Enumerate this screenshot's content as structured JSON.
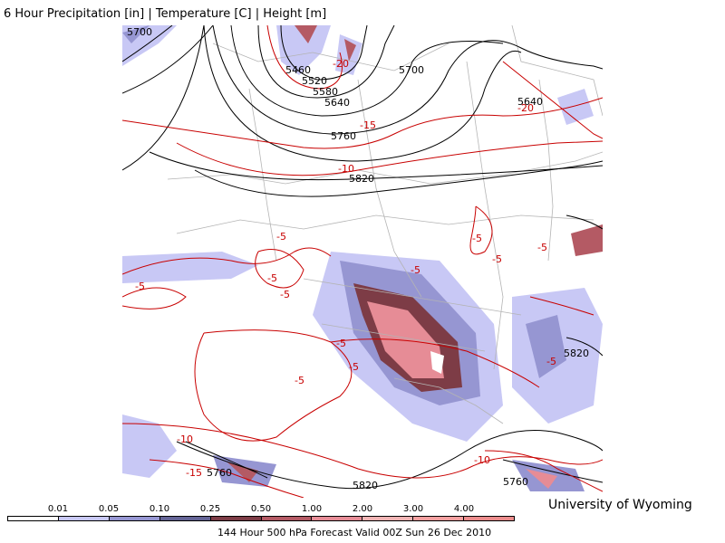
{
  "title": "6 Hour Precipitation [in] | Temperature [C] | Height [m]",
  "credit": "University of Wyoming",
  "footer": "144 Hour 500 hPa Forecast Valid 00Z Sun 26 Dec 2010",
  "legend": {
    "thresholds": [
      "0.01",
      "0.05",
      "0.10",
      "0.25",
      "0.50",
      "1.00",
      "2.00",
      "3.00",
      "4.00"
    ],
    "colors": [
      "#ffffff",
      "#c8c8f5",
      "#9696d2",
      "#646496",
      "#7d3c46",
      "#b45a64",
      "#e68c96",
      "#f0b4b4",
      "#f5a0a0",
      "#eb8c8c"
    ]
  },
  "map": {
    "colors": {
      "background": "#ffffff",
      "borders": "#b4b4b4",
      "height_contours": "#000000",
      "temperature_contours": "#c80000"
    },
    "height_labels": [
      "5700",
      "5460",
      "5520",
      "5580",
      "5640",
      "5700",
      "5640",
      "5760",
      "5820",
      "5820",
      "5820",
      "5760",
      "5760"
    ],
    "temperature_labels": [
      "-20",
      "-15",
      "-20",
      "-10",
      "-5",
      "-5",
      "-5",
      "-5",
      "-5",
      "-5",
      "-5",
      "-5",
      "-5",
      "-5",
      "-5",
      "-5",
      "-10",
      "-15",
      "-10"
    ]
  }
}
